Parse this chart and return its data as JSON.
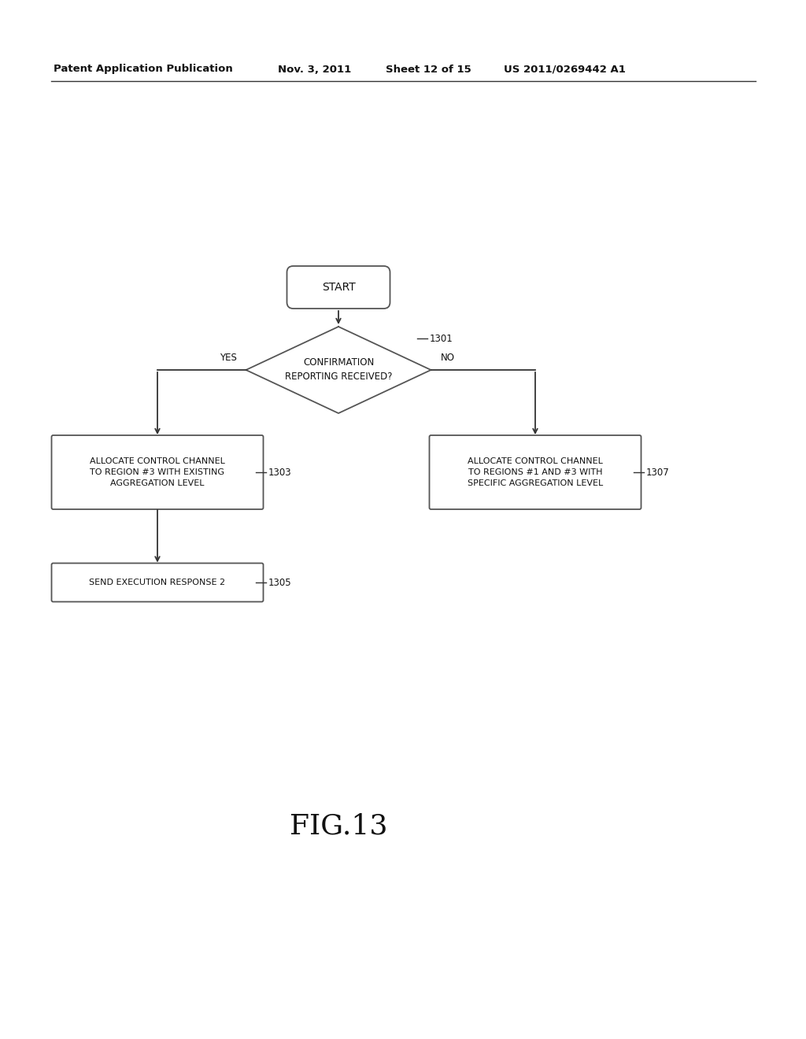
{
  "bg_color": "#ffffff",
  "header_text": "Patent Application Publication",
  "header_date": "Nov. 3, 2011",
  "header_sheet": "Sheet 12 of 15",
  "header_patent": "US 2011/0269442 A1",
  "fig_label": "FIG.13",
  "start_label": "START",
  "diamond_label": "CONFIRMATION\nREPORTING RECEIVED?",
  "diamond_ref": "1301",
  "yes_label": "YES",
  "no_label": "NO",
  "box1_label": "ALLOCATE CONTROL CHANNEL\nTO REGION #3 WITH EXISTING\nAGGREGATION LEVEL",
  "box1_ref": "1303",
  "box2_label": "ALLOCATE CONTROL CHANNEL\nTO REGIONS #1 AND #3 WITH\nSPECIFIC AGGREGATION LEVEL",
  "box2_ref": "1307",
  "box3_label": "SEND EXECUTION RESPONSE 2",
  "box3_ref": "1305",
  "line_color": "#333333",
  "text_color": "#111111",
  "shape_fill": "#ffffff",
  "shape_edge": "#555555",
  "header_line_color": "#333333"
}
